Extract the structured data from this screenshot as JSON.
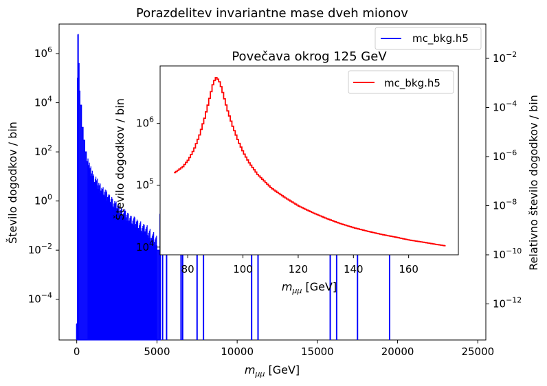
{
  "chart_data": [
    {
      "type": "step-histogram",
      "title": "Porazdelitev invariantne mase dveh mionov",
      "xlabel_base": "m",
      "xlabel_sub": "μμ",
      "xlabel_unit": " [GeV]",
      "ylabel": "Število dogodkov / bin",
      "ylabel_right": "Relativno število dogodkov / bin",
      "yscale": "log",
      "xlim": [
        -1100,
        25500
      ],
      "ylim": [
        2.2e-06,
        16000000.0
      ],
      "ylim_right": [
        3.4e-14,
        0.25
      ],
      "xticks": [
        0,
        5000,
        10000,
        15000,
        20000,
        25000
      ],
      "xtick_labels": [
        "0",
        "5000",
        "10000",
        "15000",
        "20000",
        "25000"
      ],
      "yticks_exp": [
        -4,
        -2,
        0,
        2,
        4,
        6
      ],
      "yticks_right_exp": [
        -12,
        -10,
        -8,
        -6,
        -4,
        -2
      ],
      "legend": {
        "label": "mc_bkg.h5",
        "loc": "upper right",
        "color": "#0000ff"
      },
      "color": "#0000ff",
      "series": {
        "name": "mc_bkg.h5",
        "x": [
          0,
          40,
          80,
          100,
          150,
          200,
          300,
          400,
          500,
          600,
          700,
          800,
          1000,
          1200,
          1400,
          1600,
          1800,
          2000,
          2200,
          2400,
          2600,
          2800,
          3000,
          3200,
          3400,
          3600,
          3800,
          4000,
          4200,
          4400,
          4600,
          4800,
          5000
        ],
        "y": [
          1e-05,
          100000.0,
          6000000.0,
          400000.0,
          30000.0,
          8000.0,
          1000.0,
          300,
          100,
          40,
          20,
          10,
          5,
          3,
          2,
          1.5,
          1.0,
          0.7,
          0.5,
          0.35,
          0.25,
          0.2,
          0.15,
          0.12,
          0.1,
          0.08,
          0.06,
          0.05,
          0.04,
          0.03,
          0.02,
          0.015,
          0.01
        ]
      },
      "isolated_bins": [
        5200,
        5350,
        5600,
        6500,
        6600,
        7500,
        7900,
        10900,
        11300,
        15800,
        16200,
        17500,
        19500
      ]
    },
    {
      "type": "step-histogram",
      "title": "Povečava okrog 125 GeV",
      "xlabel_base": "m",
      "xlabel_sub": "μμ",
      "xlabel_unit": " [GeV]",
      "ylabel": "Število dogodkov / bin",
      "yscale": "log",
      "xlim": [
        70,
        178
      ],
      "ylim": [
        7500,
        8500000.0
      ],
      "xticks": [
        80,
        100,
        120,
        140,
        160
      ],
      "xtick_labels": [
        "80",
        "100",
        "120",
        "140",
        "160"
      ],
      "yticks_exp": [
        4,
        5,
        6
      ],
      "legend": {
        "label": "mc_bkg.h5",
        "loc": "upper right",
        "color": "#ff0000"
      },
      "color": "#ff0000",
      "series": {
        "name": "mc_bkg.h5",
        "x": [
          75,
          78,
          80,
          82,
          84,
          86,
          88,
          89,
          90,
          91,
          92,
          93,
          94,
          96,
          98,
          100,
          102,
          105,
          110,
          115,
          120,
          125,
          130,
          135,
          140,
          145,
          150,
          155,
          160,
          165,
          170,
          173
        ],
        "y": [
          160000,
          200000,
          260000,
          380000,
          650000,
          1300000,
          3000000,
          4600000,
          5500000,
          5000000,
          3700000,
          2500000,
          1700000,
          900000,
          520000,
          330000,
          230000,
          150000,
          90000,
          63000,
          46000,
          36000,
          29000,
          24000,
          20500,
          18000,
          16000,
          14500,
          13000,
          12000,
          11000,
          10500
        ]
      }
    }
  ]
}
